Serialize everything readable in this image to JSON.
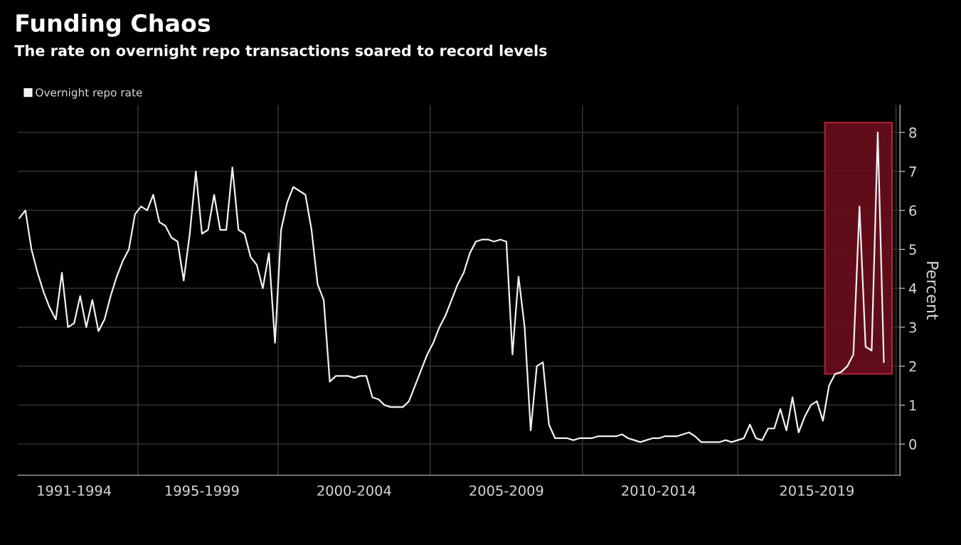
{
  "chart_data": {
    "type": "line",
    "title": "Funding Chaos",
    "subtitle": "The rate on overnight repo transactions soared to record levels",
    "ylabel": "Percent",
    "categories": [
      null,
      null,
      null,
      null,
      null,
      null,
      null,
      null,
      null,
      "1991-1994",
      null,
      null,
      null,
      null,
      null,
      null,
      null,
      null,
      null,
      null,
      null,
      null,
      null,
      null,
      null,
      null,
      null,
      null,
      null,
      null,
      "1995-1999",
      null,
      null,
      null,
      null,
      null,
      null,
      null,
      null,
      null,
      null,
      null,
      null,
      null,
      null,
      null,
      null,
      null,
      null,
      null,
      null,
      null,
      null,
      null,
      null,
      "2000-2004",
      null,
      null,
      null,
      null,
      null,
      null,
      null,
      null,
      null,
      null,
      null,
      null,
      null,
      null,
      null,
      null,
      null,
      null,
      null,
      null,
      null,
      null,
      null,
      null,
      "2005-2009",
      null,
      null,
      null,
      null,
      null,
      null,
      null,
      null,
      null,
      null,
      null,
      null,
      null,
      null,
      null,
      null,
      null,
      null,
      null,
      null,
      null,
      null,
      null,
      null,
      "2010-2014",
      null,
      null,
      null,
      null,
      null,
      null,
      null,
      null,
      null,
      null,
      null,
      null,
      null,
      null,
      null,
      null,
      null,
      null,
      null,
      null,
      null,
      null,
      null,
      null,
      null,
      "2015-2019",
      null,
      null,
      null,
      null,
      null,
      null,
      null,
      null,
      null,
      null,
      null
    ],
    "series": [
      {
        "name": "Overnight repo rate",
        "color": "#f2f2f2",
        "values": [
          5.8,
          6.0,
          5.0,
          4.4,
          3.9,
          3.5,
          3.2,
          4.4,
          3.0,
          3.1,
          3.8,
          3.0,
          3.7,
          2.9,
          3.2,
          3.8,
          4.3,
          4.7,
          5.0,
          5.9,
          6.1,
          6.0,
          6.4,
          5.7,
          5.6,
          5.3,
          5.2,
          4.2,
          5.4,
          7.0,
          5.4,
          5.5,
          6.4,
          5.5,
          5.5,
          7.1,
          5.5,
          5.4,
          4.8,
          4.6,
          4.0,
          4.9,
          2.6,
          5.5,
          6.2,
          6.6,
          6.5,
          6.4,
          5.5,
          4.1,
          3.7,
          1.6,
          1.75,
          1.75,
          1.75,
          1.7,
          1.75,
          1.75,
          1.2,
          1.15,
          1.0,
          0.95,
          0.95,
          0.95,
          1.1,
          1.5,
          1.9,
          2.3,
          2.6,
          3.0,
          3.3,
          3.7,
          4.1,
          4.4,
          4.9,
          5.2,
          5.25,
          5.25,
          5.2,
          5.25,
          5.2,
          2.3,
          4.3,
          3.0,
          0.35,
          2.0,
          2.1,
          0.5,
          0.15,
          0.15,
          0.15,
          0.1,
          0.15,
          0.15,
          0.15,
          0.2,
          0.2,
          0.2,
          0.2,
          0.25,
          0.15,
          0.1,
          0.05,
          0.1,
          0.15,
          0.15,
          0.2,
          0.2,
          0.2,
          0.25,
          0.3,
          0.2,
          0.05,
          0.05,
          0.05,
          0.05,
          0.1,
          0.05,
          0.1,
          0.15,
          0.5,
          0.15,
          0.1,
          0.4,
          0.4,
          0.9,
          0.35,
          1.2,
          0.3,
          0.7,
          1.0,
          1.1,
          0.6,
          1.5,
          1.8,
          1.85,
          2.0,
          2.3,
          6.1,
          2.5,
          2.4,
          8.0,
          2.1
        ]
      }
    ],
    "ylim": [
      -0.8,
      8.7
    ],
    "yticks": [
      0,
      1,
      2,
      3,
      4,
      5,
      6,
      7,
      8
    ],
    "grid": true,
    "legend": "top left",
    "line_style": "solid",
    "marker": "none"
  }
}
